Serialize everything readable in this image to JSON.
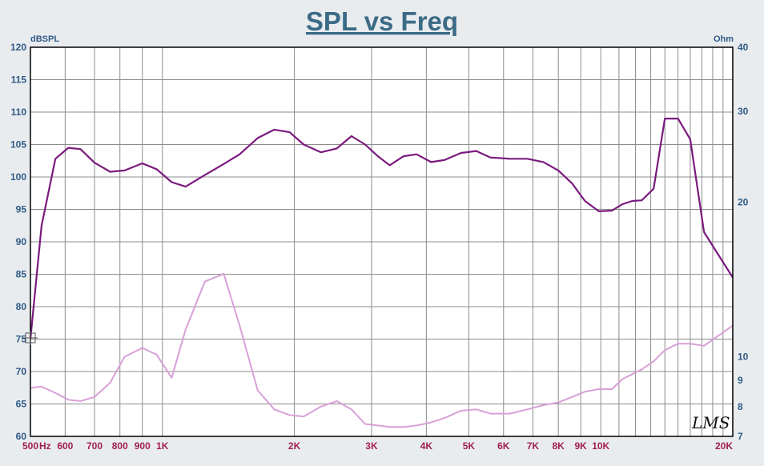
{
  "colors": {
    "background": "#e9ecef",
    "plot_bg": "#ffffff",
    "grid": "#8c8c8c",
    "title": "#3b6b86",
    "left_axis": "#2f5a86",
    "right_axis": "#2f5a86",
    "x_axis": "#a0204e",
    "spl_line": "#7a1a7e",
    "imp_line": "#d8a0d8",
    "frame": "#000000"
  },
  "chart_data": {
    "type": "line",
    "title": "SPL vs Freq",
    "left_label": "dBSPL",
    "right_label": "Ohm",
    "xlabel": "Hz",
    "xscale": "log",
    "xlim": [
      500,
      20000
    ],
    "ylim_left": [
      60,
      120
    ],
    "ylim_right": [
      7,
      40
    ],
    "yscale_right": "log",
    "left_ticks": [
      "120",
      "115",
      "110",
      "105",
      "100",
      "95",
      "90",
      "85",
      "80",
      "75",
      "70",
      "65",
      "60"
    ],
    "right_ticks": [
      "40",
      "30",
      "20",
      "10",
      "9",
      "8",
      "7"
    ],
    "x_ticks": [
      {
        "value": 500,
        "label": "500"
      },
      {
        "value": 540,
        "label": "Hz"
      },
      {
        "value": 600,
        "label": "600"
      },
      {
        "value": 700,
        "label": "700"
      },
      {
        "value": 800,
        "label": "800"
      },
      {
        "value": 900,
        "label": "900"
      },
      {
        "value": 1000,
        "label": "1K"
      },
      {
        "value": 2000,
        "label": "2K"
      },
      {
        "value": 3000,
        "label": "3K"
      },
      {
        "value": 4000,
        "label": "4K"
      },
      {
        "value": 5000,
        "label": "5K"
      },
      {
        "value": 6000,
        "label": "6K"
      },
      {
        "value": 7000,
        "label": "7K"
      },
      {
        "value": 8000,
        "label": "8K"
      },
      {
        "value": 9000,
        "label": "9K"
      },
      {
        "value": 10000,
        "label": "10K"
      },
      {
        "value": 20000,
        "label": "20K"
      }
    ],
    "series": [
      {
        "name": "SPL",
        "axis": "left",
        "points": [
          [
            500,
            75
          ],
          [
            530,
            92.5
          ],
          [
            570,
            102.8
          ],
          [
            610,
            104.5
          ],
          [
            650,
            104.3
          ],
          [
            700,
            102.2
          ],
          [
            760,
            100.8
          ],
          [
            820,
            101
          ],
          [
            900,
            102.1
          ],
          [
            970,
            101.2
          ],
          [
            1050,
            99.2
          ],
          [
            1130,
            98.5
          ],
          [
            1250,
            100.3
          ],
          [
            1380,
            102
          ],
          [
            1500,
            103.5
          ],
          [
            1650,
            106
          ],
          [
            1800,
            107.3
          ],
          [
            1950,
            106.9
          ],
          [
            2100,
            105
          ],
          [
            2300,
            103.8
          ],
          [
            2500,
            104.4
          ],
          [
            2700,
            106.3
          ],
          [
            2900,
            105
          ],
          [
            3100,
            103.2
          ],
          [
            3300,
            101.8
          ],
          [
            3550,
            103.2
          ],
          [
            3800,
            103.5
          ],
          [
            4100,
            102.3
          ],
          [
            4400,
            102.6
          ],
          [
            4800,
            103.7
          ],
          [
            5200,
            104
          ],
          [
            5600,
            103
          ],
          [
            6200,
            102.8
          ],
          [
            6800,
            102.8
          ],
          [
            7400,
            102.3
          ],
          [
            8000,
            101
          ],
          [
            8600,
            99
          ],
          [
            9200,
            96.3
          ],
          [
            9900,
            94.7
          ],
          [
            10600,
            94.8
          ],
          [
            11200,
            95.8
          ],
          [
            11800,
            96.3
          ],
          [
            12400,
            96.4
          ],
          [
            13200,
            98.2
          ],
          [
            14000,
            109
          ],
          [
            15000,
            109
          ],
          [
            16000,
            105.8
          ],
          [
            17200,
            91.5
          ],
          [
            20000,
            84.5
          ]
        ]
      },
      {
        "name": "Impedance",
        "axis": "right",
        "points": [
          [
            500,
            8.7
          ],
          [
            530,
            8.75
          ],
          [
            570,
            8.5
          ],
          [
            610,
            8.25
          ],
          [
            650,
            8.2
          ],
          [
            700,
            8.35
          ],
          [
            760,
            8.9
          ],
          [
            820,
            10
          ],
          [
            900,
            10.4
          ],
          [
            970,
            10.1
          ],
          [
            1050,
            9.1
          ],
          [
            1130,
            11.3
          ],
          [
            1250,
            14
          ],
          [
            1380,
            14.5
          ],
          [
            1500,
            11.5
          ],
          [
            1650,
            8.6
          ],
          [
            1800,
            7.9
          ],
          [
            1950,
            7.7
          ],
          [
            2100,
            7.65
          ],
          [
            2300,
            8
          ],
          [
            2500,
            8.2
          ],
          [
            2700,
            7.9
          ],
          [
            2900,
            7.4
          ],
          [
            3100,
            7.35
          ],
          [
            3300,
            7.3
          ],
          [
            3550,
            7.3
          ],
          [
            3800,
            7.35
          ],
          [
            4100,
            7.45
          ],
          [
            4400,
            7.6
          ],
          [
            4800,
            7.85
          ],
          [
            5200,
            7.9
          ],
          [
            5600,
            7.75
          ],
          [
            6200,
            7.75
          ],
          [
            6800,
            7.9
          ],
          [
            7400,
            8.05
          ],
          [
            8000,
            8.15
          ],
          [
            8600,
            8.35
          ],
          [
            9200,
            8.55
          ],
          [
            9900,
            8.65
          ],
          [
            10600,
            8.65
          ],
          [
            11200,
            9.05
          ],
          [
            11800,
            9.25
          ],
          [
            12400,
            9.45
          ],
          [
            13200,
            9.8
          ],
          [
            14000,
            10.3
          ],
          [
            15000,
            10.6
          ],
          [
            16000,
            10.6
          ],
          [
            17200,
            10.5
          ],
          [
            20000,
            11.5
          ]
        ]
      }
    ]
  },
  "logo": "LMS"
}
